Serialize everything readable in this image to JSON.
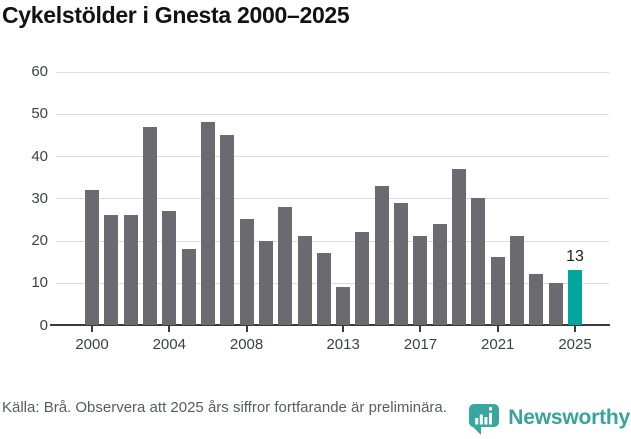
{
  "title": "Cykelstölder i Gnesta 2000–2025",
  "chart_data": {
    "type": "bar",
    "title": "Cykelstölder i Gnesta 2000–2025",
    "x": [
      2000,
      2001,
      2002,
      2003,
      2004,
      2005,
      2006,
      2007,
      2008,
      2009,
      2010,
      2011,
      2012,
      2013,
      2014,
      2015,
      2016,
      2017,
      2018,
      2019,
      2020,
      2021,
      2022,
      2023,
      2024,
      2025
    ],
    "values": [
      32,
      26,
      26,
      47,
      27,
      18,
      48,
      45,
      25,
      20,
      28,
      21,
      17,
      9,
      22,
      33,
      29,
      21,
      24,
      37,
      30,
      16,
      21,
      12,
      10,
      13
    ],
    "xlabel": "",
    "ylabel": "",
    "ylim": [
      0,
      60
    ],
    "yticks": [
      0,
      10,
      20,
      30,
      40,
      50,
      60
    ],
    "xticks": [
      2000,
      2004,
      2008,
      2013,
      2017,
      2021,
      2025
    ],
    "grid": true,
    "legend": "none",
    "highlight_x": 2025,
    "highlight_value_label": "13",
    "bar_color": "#6a6a70",
    "highlight_color": "#00a69c",
    "gridline_color": "#dcdcdc",
    "axis_color": "#3b3b3b"
  },
  "footer": {
    "source_text": "Källa: Brå. Observera att 2025 års siffror fortfarande är preliminära.",
    "logo_text": "Newsworthy",
    "logo_color": "#38a39a"
  }
}
